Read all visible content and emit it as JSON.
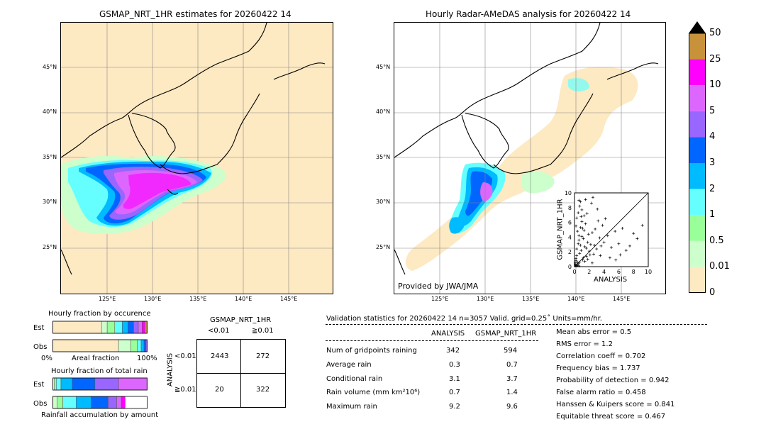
{
  "left_map": {
    "title": "GSMAP_NRT_1HR estimates for 20260422 14",
    "lat_labels": [
      "45°N",
      "40°N",
      "35°N",
      "30°N",
      "25°N"
    ],
    "lon_labels": [
      "125°E",
      "130°E",
      "135°E",
      "140°E",
      "145°E"
    ]
  },
  "right_map": {
    "title": "Hourly Radar-AMeDAS analysis for 20260422 14",
    "lat_labels": [
      "45°N",
      "40°N",
      "35°N",
      "30°N",
      "25°N"
    ],
    "lon_labels": [
      "125°E",
      "130°E",
      "135°E",
      "140°E",
      "145°E"
    ],
    "credit": "Provided by JWA/JMA"
  },
  "colorbar": {
    "labels": [
      "50",
      "25",
      "10",
      "5",
      "4",
      "3",
      "2",
      "1",
      "0.5",
      "0.01",
      "0"
    ],
    "colors": [
      "#c8923a",
      "#ff00ff",
      "#dd66ff",
      "#9966ff",
      "#0066ff",
      "#00bbff",
      "#66ffff",
      "#99ff99",
      "#ccffcc",
      "#fde9c2"
    ]
  },
  "chart_data": {
    "type": "scatter",
    "title": "",
    "xlabel": "ANALYSIS",
    "ylabel": "GSMAP_NRT_1HR",
    "xlim": [
      0,
      10
    ],
    "ylim": [
      0,
      10
    ],
    "xticks": [
      "0",
      "2",
      "4",
      "6",
      "8",
      "10"
    ],
    "yticks": [
      "0",
      "2",
      "4",
      "6",
      "8",
      "10"
    ],
    "points": [
      [
        0.1,
        0.3
      ],
      [
        0.2,
        1.1
      ],
      [
        0.3,
        2.4
      ],
      [
        0.4,
        0.6
      ],
      [
        0.5,
        3.1
      ],
      [
        0.6,
        4.2
      ],
      [
        0.7,
        1.8
      ],
      [
        0.8,
        5.3
      ],
      [
        0.9,
        2.2
      ],
      [
        1.0,
        6.1
      ],
      [
        1.1,
        0.9
      ],
      [
        1.2,
        3.8
      ],
      [
        1.3,
        4.9
      ],
      [
        1.4,
        2.7
      ],
      [
        1.5,
        5.8
      ],
      [
        1.6,
        1.4
      ],
      [
        1.7,
        7.2
      ],
      [
        1.8,
        3.3
      ],
      [
        1.9,
        4.4
      ],
      [
        2.0,
        2.1
      ],
      [
        0.2,
        5.5
      ],
      [
        0.3,
        6.6
      ],
      [
        0.4,
        4.8
      ],
      [
        0.5,
        7.3
      ],
      [
        0.6,
        3.6
      ],
      [
        0.7,
        8.2
      ],
      [
        0.8,
        2.9
      ],
      [
        0.9,
        6.8
      ],
      [
        1.0,
        4.1
      ],
      [
        1.1,
        5.2
      ],
      [
        2.2,
        3.0
      ],
      [
        2.4,
        4.6
      ],
      [
        2.6,
        1.7
      ],
      [
        2.8,
        5.1
      ],
      [
        3.0,
        2.4
      ],
      [
        3.2,
        6.2
      ],
      [
        3.4,
        3.9
      ],
      [
        3.6,
        2.8
      ],
      [
        3.8,
        5.6
      ],
      [
        4.0,
        3.3
      ],
      [
        4.5,
        4.2
      ],
      [
        5.0,
        2.6
      ],
      [
        5.5,
        4.8
      ],
      [
        6.0,
        3.1
      ],
      [
        6.5,
        5.2
      ],
      [
        7.0,
        2.2
      ],
      [
        4.2,
        6.5
      ],
      [
        3.1,
        7.8
      ],
      [
        2.3,
        8.6
      ],
      [
        1.5,
        9.1
      ],
      [
        2.5,
        9.4
      ],
      [
        0.6,
        9.0
      ],
      [
        3.5,
        1.5
      ],
      [
        4.8,
        1.2
      ],
      [
        5.6,
        0.9
      ],
      [
        6.2,
        1.6
      ],
      [
        7.5,
        2.8
      ],
      [
        8.0,
        4.5
      ],
      [
        9.2,
        5.6
      ],
      [
        8.5,
        3.8
      ],
      [
        0.1,
        0.1
      ],
      [
        0.2,
        0.2
      ],
      [
        0.3,
        0.1
      ],
      [
        0.1,
        0.5
      ],
      [
        0.4,
        0.2
      ],
      [
        0.2,
        0.8
      ],
      [
        0.5,
        0.4
      ],
      [
        0.6,
        0.1
      ],
      [
        0.7,
        0.6
      ],
      [
        0.3,
        1.5
      ],
      [
        1.2,
        1.2
      ],
      [
        1.4,
        0.7
      ],
      [
        1.6,
        2.5
      ],
      [
        1.8,
        1.0
      ],
      [
        2.1,
        1.6
      ],
      [
        2.4,
        0.5
      ],
      [
        2.7,
        2.9
      ],
      [
        1.3,
        6.9
      ],
      [
        1.0,
        7.7
      ],
      [
        0.8,
        8.8
      ]
    ]
  },
  "bottom_left": {
    "occ_title": "Hourly fraction by occurence",
    "row_est": "Est",
    "row_obs": "Obs",
    "axis_left": "0%",
    "axis_mid": "Areal fraction",
    "axis_right": "100%",
    "tot_title": "Hourly fraction of total rain",
    "acc_label": "Rainfall accumulation by amount",
    "occ_est": [
      0.52,
      0.06,
      0.08,
      0.08,
      0.06,
      0.06,
      0.05,
      0.04,
      0.03,
      0.02
    ],
    "occ_obs": [
      0.7,
      0.13,
      0.07,
      0.04,
      0.03,
      0.02,
      0.01
    ],
    "tot_est": [
      0.02,
      0.02,
      0.05,
      0.12,
      0.24,
      0.25,
      0.3
    ],
    "tot_obs": [
      0.05,
      0.06,
      0.14,
      0.16,
      0.18,
      0.09,
      0.05,
      0.04
    ]
  },
  "contingency": {
    "title": "GSMAP_NRT_1HR",
    "col1": "<0.01",
    "col2": "≧0.01",
    "side": "ANALYSIS",
    "row1": "<0.01",
    "row2": "≧0.01",
    "c11": "2443",
    "c12": "272",
    "c21": "20",
    "c22": "322"
  },
  "validation": {
    "header": "Validation statistics for 20260422 14  n=3057 Valid. grid=0.25˚ Units=mm/hr.",
    "col_analysis": "ANALYSIS",
    "col_gsmap": "GSMAP_NRT_1HR",
    "rows": [
      {
        "label": "Num of gridpoints raining",
        "a": "342",
        "g": "594"
      },
      {
        "label": "Average rain",
        "a": "0.3",
        "g": "0.7"
      },
      {
        "label": "Conditional rain",
        "a": "3.1",
        "g": "3.7"
      },
      {
        "label": "Rain volume (mm km²10⁶)",
        "a": "0.7",
        "g": "1.4"
      },
      {
        "label": "Maximum rain",
        "a": "9.2",
        "g": "9.6"
      }
    ],
    "scores": [
      "Mean abs error =    0.5",
      "RMS error =    1.2",
      "Correlation coeff =  0.702",
      "Frequency bias =  1.737",
      "Probability of detection =  0.942",
      "False alarm ratio =  0.458",
      "Hanssen & Kuipers score =  0.841",
      "Equitable threat score =  0.467"
    ]
  }
}
